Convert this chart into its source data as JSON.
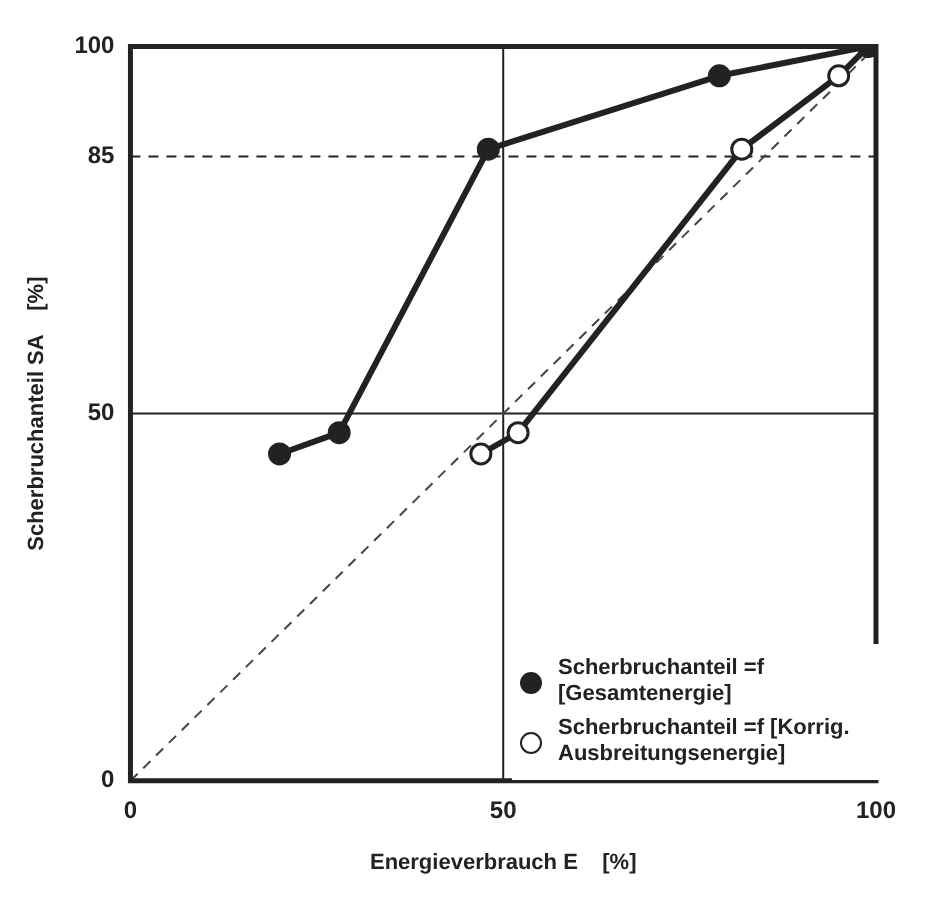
{
  "chart_data": {
    "type": "line",
    "xlabel": "Energieverbrauch E    [%]",
    "ylabel": "Scherbruchanteil SA    [%]",
    "xlim": [
      0,
      100
    ],
    "ylim": [
      0,
      100
    ],
    "xticks": [
      0,
      50,
      100
    ],
    "yticks": [
      0,
      50,
      85,
      100
    ],
    "grid": false,
    "legend": "bottom right",
    "marker": "circle",
    "series": [
      {
        "name": "Scherbruchanteil =f [Gesamtenergie]",
        "color": "#222222",
        "x": [
          20,
          28,
          48,
          79,
          99
        ],
        "values": [
          44.5,
          47.4,
          86,
          96,
          100
        ]
      },
      {
        "name": "Scherbruchanteil =f [Korrig. Ausbreitungsenergie]",
        "color": "#222222",
        "x": [
          47,
          52,
          82,
          95,
          99
        ],
        "values": [
          44.5,
          47.4,
          86,
          96,
          100
        ]
      },
      {
        "type": "line",
        "color": "#444444",
        "line_style": "dashed",
        "marker": "none",
        "x": [
          0,
          100
        ],
        "values": [
          0,
          100
        ]
      }
    ],
    "ref_lines": [
      {
        "axis": "y",
        "value": 85,
        "line_style": "dashed",
        "color": "#222222"
      },
      {
        "axis": "y",
        "value": 50,
        "color": "#222222"
      },
      {
        "axis": "x",
        "value": 50,
        "color": "#222222"
      }
    ]
  }
}
